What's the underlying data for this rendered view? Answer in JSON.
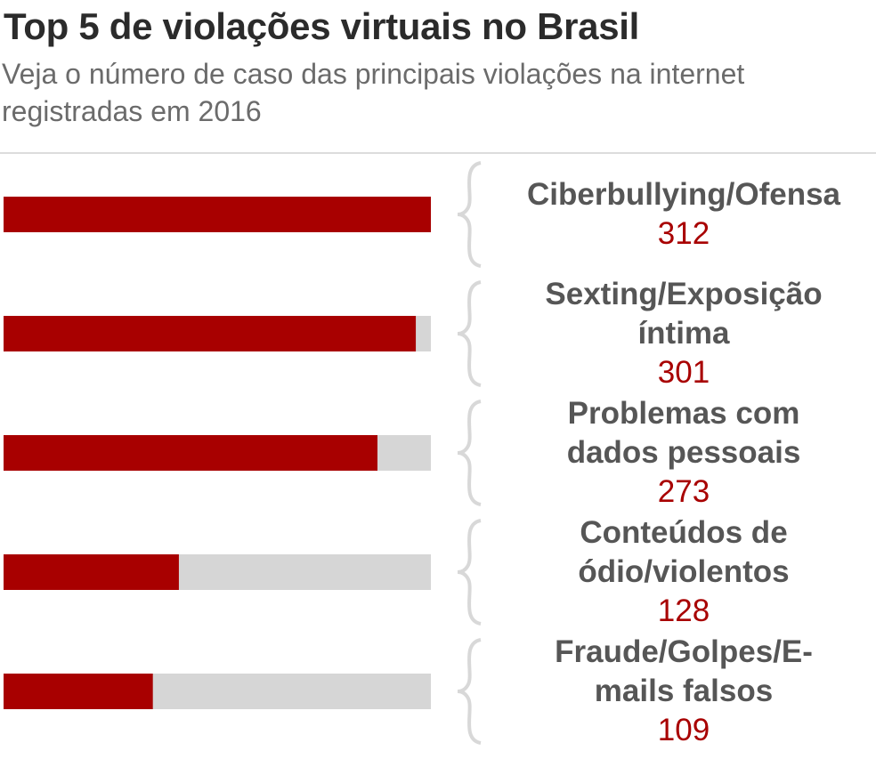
{
  "chart_data": {
    "type": "bar",
    "title": "Top 5 de violações virtuais no Brasil",
    "subtitle": "Veja o número de caso das principais violações na internet registradas em 2016",
    "categories": [
      "Ciberbullying/Ofensa",
      "Sexting/Exposição\níntima",
      "Problemas com\ndados pessoais",
      "Conteúdos de\nódio/violentos",
      "Fraude/Golpes/E-\nmails falsos"
    ],
    "values": [
      312,
      301,
      273,
      128,
      109
    ],
    "color": "#a80000",
    "track_color": "#d6d6d6",
    "value_color": "#a80000",
    "xlim": [
      0,
      312
    ]
  }
}
